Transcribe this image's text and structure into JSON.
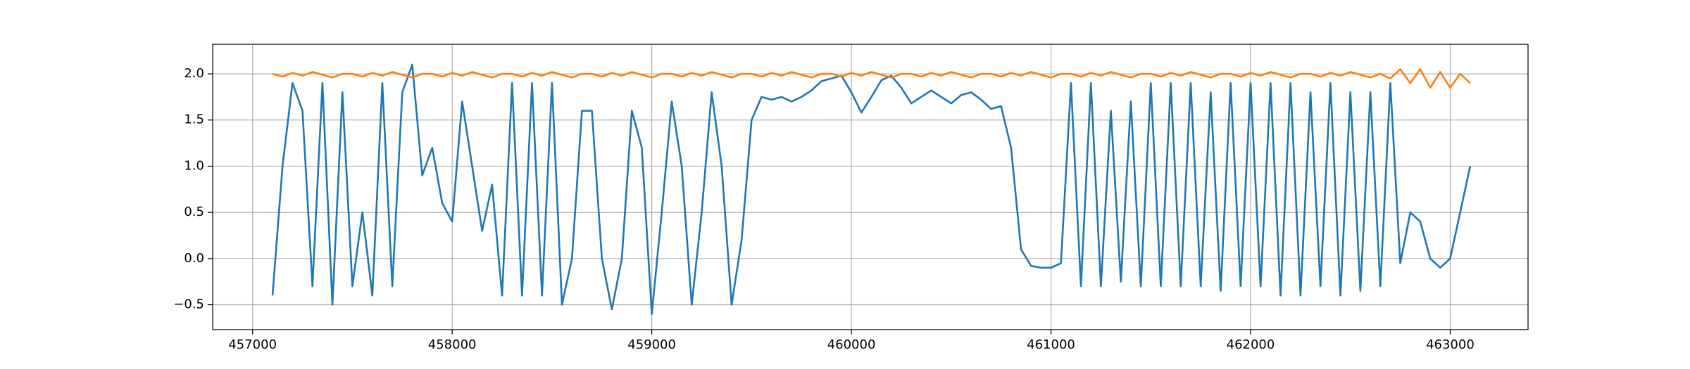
{
  "chart_data": {
    "type": "line",
    "x": [
      457100,
      457150,
      457200,
      457250,
      457300,
      457350,
      457400,
      457450,
      457500,
      457550,
      457600,
      457650,
      457700,
      457750,
      457800,
      457850,
      457900,
      457950,
      458000,
      458050,
      458100,
      458150,
      458200,
      458250,
      458300,
      458350,
      458400,
      458450,
      458500,
      458550,
      458600,
      458650,
      458700,
      458750,
      458800,
      458850,
      458900,
      458950,
      459000,
      459050,
      459100,
      459150,
      459200,
      459250,
      459300,
      459350,
      459400,
      459450,
      459500,
      459550,
      459600,
      459650,
      459700,
      459750,
      459800,
      459850,
      459900,
      459950,
      460000,
      460050,
      460100,
      460150,
      460200,
      460250,
      460300,
      460350,
      460400,
      460450,
      460500,
      460550,
      460600,
      460650,
      460700,
      460750,
      460800,
      460850,
      460900,
      460950,
      461000,
      461050,
      461100,
      461150,
      461200,
      461250,
      461300,
      461350,
      461400,
      461450,
      461500,
      461550,
      461600,
      461650,
      461700,
      461750,
      461800,
      461850,
      461900,
      461950,
      462000,
      462050,
      462100,
      462150,
      462200,
      462250,
      462300,
      462350,
      462400,
      462450,
      462500,
      462550,
      462600,
      462650,
      462700,
      462750,
      462800,
      462850,
      462900,
      462950,
      463000,
      463050,
      463100
    ],
    "series": [
      {
        "color": "#1f77b4",
        "values": [
          -0.4,
          1.0,
          1.9,
          1.6,
          -0.3,
          1.9,
          -0.5,
          1.8,
          -0.3,
          0.5,
          -0.4,
          1.9,
          -0.3,
          1.8,
          2.1,
          0.9,
          1.2,
          0.6,
          0.4,
          1.7,
          1.0,
          0.3,
          0.8,
          -0.4,
          1.9,
          -0.4,
          1.9,
          -0.4,
          1.9,
          -0.5,
          0.0,
          1.6,
          1.6,
          0.0,
          -0.55,
          0.0,
          1.6,
          1.2,
          -0.6,
          0.5,
          1.7,
          1.0,
          -0.5,
          0.5,
          1.8,
          1.0,
          -0.5,
          0.2,
          1.5,
          1.75,
          1.72,
          1.75,
          1.7,
          1.75,
          1.82,
          1.92,
          1.95,
          1.98,
          1.8,
          1.58,
          1.75,
          1.93,
          1.98,
          1.85,
          1.68,
          1.75,
          1.82,
          1.75,
          1.68,
          1.77,
          1.8,
          1.72,
          1.62,
          1.65,
          1.2,
          0.1,
          -0.08,
          -0.1,
          -0.1,
          -0.05,
          1.9,
          -0.3,
          1.9,
          -0.3,
          1.6,
          -0.25,
          1.7,
          -0.3,
          1.9,
          -0.3,
          1.9,
          -0.3,
          1.9,
          -0.3,
          1.8,
          -0.35,
          1.9,
          -0.3,
          1.9,
          -0.3,
          1.9,
          -0.4,
          1.9,
          -0.4,
          1.8,
          -0.3,
          1.9,
          -0.4,
          1.8,
          -0.35,
          1.8,
          -0.3,
          1.9,
          -0.05,
          0.5,
          0.4,
          0.0,
          -0.1,
          0.0,
          0.5,
          1.0
        ]
      },
      {
        "color": "#ff7f0e",
        "values": [
          2.0,
          1.97,
          2.01,
          1.98,
          2.02,
          1.99,
          1.96,
          2.0,
          2.0,
          1.97,
          2.01,
          1.98,
          2.02,
          1.99,
          1.96,
          2.0,
          2.0,
          1.97,
          2.01,
          1.98,
          2.02,
          1.99,
          1.96,
          2.0,
          2.0,
          1.97,
          2.01,
          1.98,
          2.02,
          1.99,
          1.96,
          2.0,
          2.0,
          1.97,
          2.01,
          1.98,
          2.02,
          1.99,
          1.96,
          2.0,
          2.0,
          1.97,
          2.01,
          1.98,
          2.02,
          1.99,
          1.96,
          2.0,
          2.0,
          1.97,
          2.01,
          1.98,
          2.02,
          1.99,
          1.96,
          2.0,
          2.0,
          1.97,
          2.01,
          1.98,
          2.02,
          1.99,
          1.96,
          2.0,
          2.0,
          1.97,
          2.01,
          1.98,
          2.02,
          1.99,
          1.96,
          2.0,
          2.0,
          1.97,
          2.01,
          1.98,
          2.02,
          1.99,
          1.96,
          2.0,
          2.0,
          1.97,
          2.01,
          1.98,
          2.02,
          1.99,
          1.96,
          2.0,
          2.0,
          1.97,
          2.01,
          1.98,
          2.02,
          1.99,
          1.96,
          2.0,
          2.0,
          1.97,
          2.01,
          1.98,
          2.02,
          1.99,
          1.96,
          2.0,
          2.0,
          1.97,
          2.01,
          1.98,
          2.02,
          1.99,
          1.96,
          2.0,
          1.95,
          2.05,
          1.9,
          2.05,
          1.85,
          2.02,
          1.85,
          2.0,
          1.9
        ]
      }
    ],
    "xlim": [
      456800,
      463390
    ],
    "xticks": [
      457000,
      458000,
      459000,
      460000,
      461000,
      462000,
      463000
    ],
    "ylim": [
      -0.77,
      2.32
    ],
    "yticks": [
      {
        "value": -0.5,
        "label": "−0.5"
      },
      {
        "value": 0.0,
        "label": "0.0"
      },
      0.5,
      {
        "value": 1.0,
        "label": "1.0"
      },
      1.5,
      {
        "value": 2.0,
        "label": "2.0"
      }
    ],
    "grid": true
  }
}
